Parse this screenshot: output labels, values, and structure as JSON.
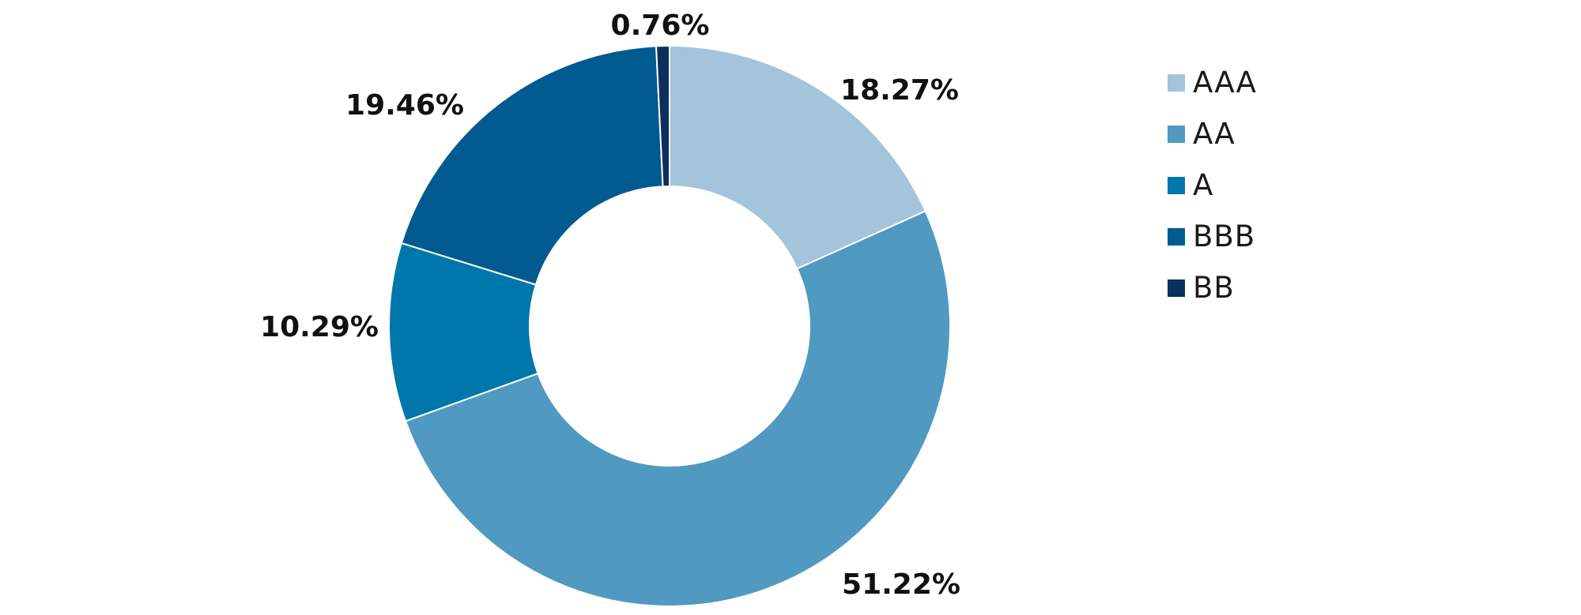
{
  "chart_data": {
    "type": "pie",
    "variant": "donut",
    "title": "",
    "categories": [
      "AAA",
      "AA",
      "A",
      "BBB",
      "BB"
    ],
    "values": [
      18.27,
      51.22,
      10.29,
      19.46,
      0.76
    ],
    "value_labels": [
      "18.27%",
      "51.22%",
      "10.29%",
      "19.46%",
      "0.76%"
    ],
    "colors": [
      "#a3c4db",
      "#5099c1",
      "#0077ab",
      "#025b90",
      "#0d2f5e"
    ],
    "start_angle": "12 o'clock",
    "direction": "clockwise",
    "legend": {
      "position": "right",
      "entries": [
        "AAA",
        "AA",
        "A",
        "BBB",
        "BB"
      ]
    }
  }
}
